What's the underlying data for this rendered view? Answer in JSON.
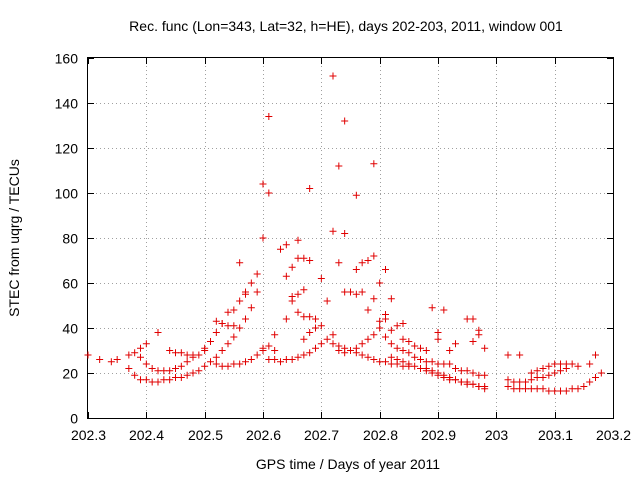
{
  "chart_data": {
    "type": "scatter",
    "title": "Rec. func (Lon=343, Lat=32, h=HE), days 202-203, 2011, window 001",
    "xlabel": "GPS time / Days of year 2011",
    "ylabel": "STEC from uqrg / TECUs",
    "xlim": [
      202.3,
      203.2
    ],
    "ylim": [
      0,
      160
    ],
    "x_ticks": [
      202.3,
      202.4,
      202.5,
      202.6,
      202.7,
      202.8,
      202.9,
      203.0,
      203.1,
      203.2
    ],
    "x_tick_labels": [
      "202.3",
      "202.4",
      "202.5",
      "202.6",
      "202.7",
      "202.8",
      "202.9",
      "203",
      "203.1",
      "203.2"
    ],
    "y_ticks": [
      0,
      20,
      40,
      60,
      80,
      100,
      120,
      140,
      160
    ],
    "y_tick_labels": [
      "0",
      "20",
      "40",
      "60",
      "80",
      "100",
      "120",
      "140",
      "160"
    ],
    "grid": true,
    "marker": "+",
    "color": "#e00000",
    "series": [
      {
        "name": "STEC",
        "points": [
          [
            202.3,
            28
          ],
          [
            202.32,
            26
          ],
          [
            202.34,
            25
          ],
          [
            202.35,
            26
          ],
          [
            202.37,
            28
          ],
          [
            202.38,
            29
          ],
          [
            202.39,
            31
          ],
          [
            202.4,
            33
          ],
          [
            202.42,
            38
          ],
          [
            202.37,
            22
          ],
          [
            202.38,
            19
          ],
          [
            202.39,
            17
          ],
          [
            202.4,
            17
          ],
          [
            202.41,
            16
          ],
          [
            202.42,
            16
          ],
          [
            202.43,
            17
          ],
          [
            202.44,
            17
          ],
          [
            202.45,
            18
          ],
          [
            202.46,
            18
          ],
          [
            202.47,
            19
          ],
          [
            202.48,
            20
          ],
          [
            202.49,
            21
          ],
          [
            202.5,
            23
          ],
          [
            202.39,
            27
          ],
          [
            202.4,
            24
          ],
          [
            202.41,
            22
          ],
          [
            202.42,
            21
          ],
          [
            202.43,
            21
          ],
          [
            202.44,
            21
          ],
          [
            202.45,
            22
          ],
          [
            202.46,
            23
          ],
          [
            202.47,
            25
          ],
          [
            202.48,
            27
          ],
          [
            202.49,
            28
          ],
          [
            202.5,
            30
          ],
          [
            202.44,
            30
          ],
          [
            202.45,
            29
          ],
          [
            202.46,
            29
          ],
          [
            202.47,
            28
          ],
          [
            202.48,
            28
          ],
          [
            202.5,
            31
          ],
          [
            202.51,
            34
          ],
          [
            202.52,
            38
          ],
          [
            202.53,
            42
          ],
          [
            202.54,
            47
          ],
          [
            202.55,
            48
          ],
          [
            202.56,
            52
          ],
          [
            202.57,
            56
          ],
          [
            202.58,
            60
          ],
          [
            202.59,
            64
          ],
          [
            202.51,
            25
          ],
          [
            202.52,
            27
          ],
          [
            202.53,
            30
          ],
          [
            202.54,
            33
          ],
          [
            202.55,
            36
          ],
          [
            202.56,
            40
          ],
          [
            202.57,
            44
          ],
          [
            202.58,
            49
          ],
          [
            202.59,
            56
          ],
          [
            202.52,
            24
          ],
          [
            202.53,
            23
          ],
          [
            202.54,
            23
          ],
          [
            202.55,
            24
          ],
          [
            202.56,
            24
          ],
          [
            202.57,
            25
          ],
          [
            202.58,
            26
          ],
          [
            202.59,
            28
          ],
          [
            202.6,
            30
          ],
          [
            202.61,
            32
          ],
          [
            202.52,
            43
          ],
          [
            202.53,
            42
          ],
          [
            202.54,
            41
          ],
          [
            202.55,
            41
          ],
          [
            202.56,
            69
          ],
          [
            202.57,
            55
          ],
          [
            202.6,
            104
          ],
          [
            202.61,
            134
          ],
          [
            202.61,
            100
          ],
          [
            202.62,
            37
          ],
          [
            202.63,
            75
          ],
          [
            202.64,
            77
          ],
          [
            202.6,
            80
          ],
          [
            202.61,
            26
          ],
          [
            202.62,
            26
          ],
          [
            202.63,
            25
          ],
          [
            202.64,
            26
          ],
          [
            202.65,
            26
          ],
          [
            202.66,
            27
          ],
          [
            202.67,
            28
          ],
          [
            202.68,
            29
          ],
          [
            202.69,
            31
          ],
          [
            202.7,
            33
          ],
          [
            202.71,
            35
          ],
          [
            202.72,
            37
          ],
          [
            202.6,
            31
          ],
          [
            202.62,
            30
          ],
          [
            202.64,
            44
          ],
          [
            202.65,
            52
          ],
          [
            202.65,
            54
          ],
          [
            202.66,
            55
          ],
          [
            202.66,
            47
          ],
          [
            202.67,
            45
          ],
          [
            202.67,
            57
          ],
          [
            202.65,
            67
          ],
          [
            202.66,
            71
          ],
          [
            202.67,
            71
          ],
          [
            202.66,
            79
          ],
          [
            202.68,
            102
          ],
          [
            202.68,
            70
          ],
          [
            202.64,
            63
          ],
          [
            202.67,
            35
          ],
          [
            202.68,
            38
          ],
          [
            202.68,
            45
          ],
          [
            202.69,
            44
          ],
          [
            202.69,
            40
          ],
          [
            202.7,
            41
          ],
          [
            202.7,
            62
          ],
          [
            202.71,
            52
          ],
          [
            202.72,
            152
          ],
          [
            202.72,
            83
          ],
          [
            202.73,
            112
          ],
          [
            202.74,
            132
          ],
          [
            202.74,
            82
          ],
          [
            202.76,
            99
          ],
          [
            202.73,
            69
          ],
          [
            202.72,
            33
          ],
          [
            202.73,
            32
          ],
          [
            202.74,
            31
          ],
          [
            202.75,
            30
          ],
          [
            202.76,
            29
          ],
          [
            202.77,
            28
          ],
          [
            202.78,
            27
          ],
          [
            202.79,
            26
          ],
          [
            202.8,
            25
          ],
          [
            202.81,
            25
          ],
          [
            202.82,
            24
          ],
          [
            202.83,
            24
          ],
          [
            202.84,
            23
          ],
          [
            202.85,
            23
          ],
          [
            202.73,
            30
          ],
          [
            202.74,
            29
          ],
          [
            202.75,
            30
          ],
          [
            202.76,
            31
          ],
          [
            202.77,
            33
          ],
          [
            202.78,
            35
          ],
          [
            202.79,
            37
          ],
          [
            202.8,
            40
          ],
          [
            202.81,
            44
          ],
          [
            202.74,
            56
          ],
          [
            202.75,
            56
          ],
          [
            202.76,
            55
          ],
          [
            202.77,
            56
          ],
          [
            202.76,
            66
          ],
          [
            202.77,
            69
          ],
          [
            202.78,
            70
          ],
          [
            202.79,
            72
          ],
          [
            202.79,
            113
          ],
          [
            202.8,
            60
          ],
          [
            202.78,
            48
          ],
          [
            202.79,
            53
          ],
          [
            202.8,
            43
          ],
          [
            202.81,
            66
          ],
          [
            202.82,
            53
          ],
          [
            202.83,
            41
          ],
          [
            202.84,
            42
          ],
          [
            202.81,
            46
          ],
          [
            202.82,
            39
          ],
          [
            202.81,
            36
          ],
          [
            202.82,
            33
          ],
          [
            202.83,
            31
          ],
          [
            202.84,
            30
          ],
          [
            202.85,
            29
          ],
          [
            202.86,
            27
          ],
          [
            202.87,
            26
          ],
          [
            202.88,
            25
          ],
          [
            202.89,
            25
          ],
          [
            202.9,
            24
          ],
          [
            202.91,
            24
          ],
          [
            202.92,
            24
          ],
          [
            202.82,
            27
          ],
          [
            202.83,
            26
          ],
          [
            202.84,
            25
          ],
          [
            202.85,
            24
          ],
          [
            202.86,
            23
          ],
          [
            202.87,
            22
          ],
          [
            202.88,
            21
          ],
          [
            202.89,
            20
          ],
          [
            202.9,
            19
          ],
          [
            202.91,
            18
          ],
          [
            202.92,
            17
          ],
          [
            202.93,
            17
          ],
          [
            202.94,
            16
          ],
          [
            202.95,
            15
          ],
          [
            202.96,
            15
          ],
          [
            202.97,
            14
          ],
          [
            202.98,
            13
          ],
          [
            202.84,
            35
          ],
          [
            202.85,
            34
          ],
          [
            202.86,
            32
          ],
          [
            202.87,
            31
          ],
          [
            202.88,
            30
          ],
          [
            202.89,
            49
          ],
          [
            202.9,
            38
          ],
          [
            202.9,
            35
          ],
          [
            202.91,
            48
          ],
          [
            202.92,
            30
          ],
          [
            202.93,
            33
          ],
          [
            202.95,
            44
          ],
          [
            202.96,
            44
          ],
          [
            202.96,
            34
          ],
          [
            202.97,
            39
          ],
          [
            202.97,
            37
          ],
          [
            202.98,
            31
          ],
          [
            202.93,
            22
          ],
          [
            202.94,
            21
          ],
          [
            202.95,
            21
          ],
          [
            202.96,
            20
          ],
          [
            202.97,
            19
          ],
          [
            202.98,
            19
          ],
          [
            202.88,
            22
          ],
          [
            202.89,
            21
          ],
          [
            202.9,
            20
          ],
          [
            202.91,
            19
          ],
          [
            202.92,
            18
          ],
          [
            202.93,
            17
          ],
          [
            202.94,
            16
          ],
          [
            202.95,
            16
          ],
          [
            202.96,
            15
          ],
          [
            202.97,
            14
          ],
          [
            202.98,
            14
          ],
          [
            203.02,
            28
          ],
          [
            203.04,
            28
          ],
          [
            203.02,
            17
          ],
          [
            203.03,
            16
          ],
          [
            203.04,
            16
          ],
          [
            203.05,
            16
          ],
          [
            203.06,
            17
          ],
          [
            203.07,
            18
          ],
          [
            203.08,
            18
          ],
          [
            203.09,
            19
          ],
          [
            203.1,
            20
          ],
          [
            203.11,
            21
          ],
          [
            203.12,
            22
          ],
          [
            203.02,
            14
          ],
          [
            203.03,
            13
          ],
          [
            203.04,
            13
          ],
          [
            203.05,
            13
          ],
          [
            203.06,
            13
          ],
          [
            203.07,
            13
          ],
          [
            203.08,
            13
          ],
          [
            203.09,
            12
          ],
          [
            203.1,
            12
          ],
          [
            203.11,
            12
          ],
          [
            203.12,
            12
          ],
          [
            203.13,
            13
          ],
          [
            203.14,
            13
          ],
          [
            203.15,
            14
          ],
          [
            203.16,
            16
          ],
          [
            203.17,
            18
          ],
          [
            203.18,
            20
          ],
          [
            203.06,
            20
          ],
          [
            203.07,
            21
          ],
          [
            203.08,
            22
          ],
          [
            203.09,
            23
          ],
          [
            203.1,
            24
          ],
          [
            203.11,
            24
          ],
          [
            203.12,
            24
          ],
          [
            203.13,
            24
          ],
          [
            203.14,
            23
          ],
          [
            203.16,
            24
          ],
          [
            203.17,
            28
          ]
        ]
      }
    ]
  }
}
